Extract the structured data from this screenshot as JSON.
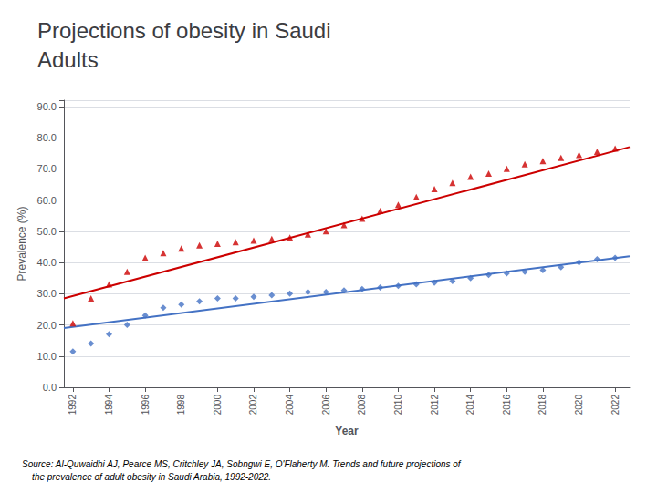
{
  "chart_data": {
    "type": "scatter",
    "title": "Projections of obesity in Saudi\nAdults",
    "xlabel": "Year",
    "ylabel": "Prevalence (%)",
    "x": [
      1992,
      1993,
      1994,
      1995,
      1996,
      1997,
      1998,
      1999,
      2000,
      2001,
      2002,
      2003,
      2004,
      2005,
      2006,
      2007,
      2008,
      2009,
      2010,
      2011,
      2012,
      2013,
      2014,
      2015,
      2016,
      2017,
      2018,
      2019,
      2020,
      2021,
      2022
    ],
    "series": [
      {
        "type": "scatter",
        "color": "#4472C4",
        "marker": "diamond",
        "values": [
          11.5,
          14.0,
          17.0,
          20.0,
          23.0,
          25.5,
          26.5,
          27.5,
          28.5,
          28.5,
          29.0,
          29.5,
          30.0,
          30.5,
          30.5,
          31.0,
          31.5,
          32.0,
          32.5,
          33.0,
          33.5,
          34.0,
          35.0,
          36.0,
          36.5,
          37.0,
          37.5,
          38.5,
          40.0,
          41.0,
          41.5
        ]
      },
      {
        "type": "scatter",
        "color": "#CC0000",
        "marker": "triangle",
        "values": [
          20.5,
          28.5,
          33.0,
          37.0,
          41.5,
          43.0,
          44.5,
          45.5,
          46.0,
          46.5,
          47.0,
          47.5,
          48.0,
          49.0,
          50.0,
          52.0,
          54.0,
          56.5,
          58.5,
          61.0,
          63.5,
          65.5,
          67.5,
          68.5,
          70.0,
          71.5,
          72.5,
          73.5,
          74.5,
          75.5,
          76.5
        ]
      },
      {
        "type": "line",
        "color": "#4472C4",
        "line_style": "solid",
        "x": [
          1991.5,
          2022.8
        ],
        "values": [
          19.0,
          42.0
        ]
      },
      {
        "type": "line",
        "color": "#CC0000",
        "line_style": "solid",
        "x": [
          1991.5,
          2022.8
        ],
        "values": [
          28.5,
          77.0
        ]
      }
    ],
    "xlim": [
      1991.5,
      2022.8
    ],
    "xticks": [
      1992,
      1994,
      1996,
      1998,
      2000,
      2002,
      2004,
      2006,
      2008,
      2010,
      2012,
      2014,
      2016,
      2018,
      2020,
      2022
    ],
    "ylim": [
      0,
      92
    ],
    "yticks": [
      {
        "value": 0,
        "label": "0.0"
      },
      {
        "value": 10,
        "label": "10.0"
      },
      {
        "value": 20,
        "label": "20.0"
      },
      {
        "value": 30,
        "label": "30.0"
      },
      {
        "value": 40,
        "label": "40.0"
      },
      {
        "value": 50,
        "label": "50.0"
      },
      {
        "value": 60,
        "label": "60.0"
      },
      {
        "value": 70,
        "label": "70.0"
      },
      {
        "value": 80,
        "label": "80.0"
      },
      {
        "value": 90,
        "label": "90.0"
      }
    ],
    "grid": "y",
    "annotations": [
      "Source: Al-Quwaidhi AJ, Pearce MS, Critchley JA, Sobngwi E, O'Flaherty M. Trends and future projections of\n    the prevalence of adult obesity in Saudi Arabia, 1992-2022."
    ]
  }
}
